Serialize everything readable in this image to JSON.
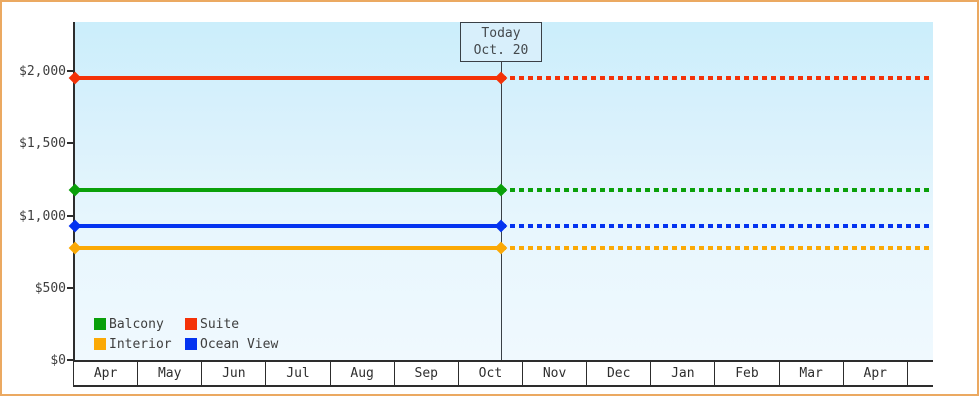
{
  "window": {
    "border_color": "#eba961",
    "background_color": "#ffffff"
  },
  "chart_data": {
    "type": "line",
    "title": "",
    "xlabel": "",
    "ylabel": "",
    "x": {
      "categories": [
        "Apr",
        "May",
        "Jun",
        "Jul",
        "Aug",
        "Sep",
        "Oct",
        "Nov",
        "Dec",
        "Jan",
        "Feb",
        "Mar",
        "Apr"
      ]
    },
    "y": {
      "max": 2340,
      "ticks": [
        {
          "value": 0,
          "label": "$0"
        },
        {
          "value": 500,
          "label": "$500"
        },
        {
          "value": 1000,
          "label": "$1,000"
        },
        {
          "value": 1500,
          "label": "$1,500"
        },
        {
          "value": 2000,
          "label": "$2,000"
        }
      ]
    },
    "today": {
      "line1": "Today",
      "line2": "Oct. 20",
      "month_index": 6,
      "day_fraction": 0.645
    },
    "series": [
      {
        "name": "Suite",
        "color": "#f43208",
        "value": 1950
      },
      {
        "name": "Balcony",
        "color": "#0aa00a",
        "value": 1175
      },
      {
        "name": "Ocean View",
        "color": "#0433f0",
        "value": 925
      },
      {
        "name": "Interior",
        "color": "#fba905",
        "value": 775
      }
    ],
    "legend_order": [
      "Balcony",
      "Suite",
      "Interior",
      "Ocean View"
    ],
    "line_style": {
      "before_today": "solid",
      "after_today": "dotted"
    },
    "grid": false,
    "legend_position": "bottom-left",
    "plot_background": [
      "#cbeefb",
      "#f0f9fe"
    ]
  }
}
